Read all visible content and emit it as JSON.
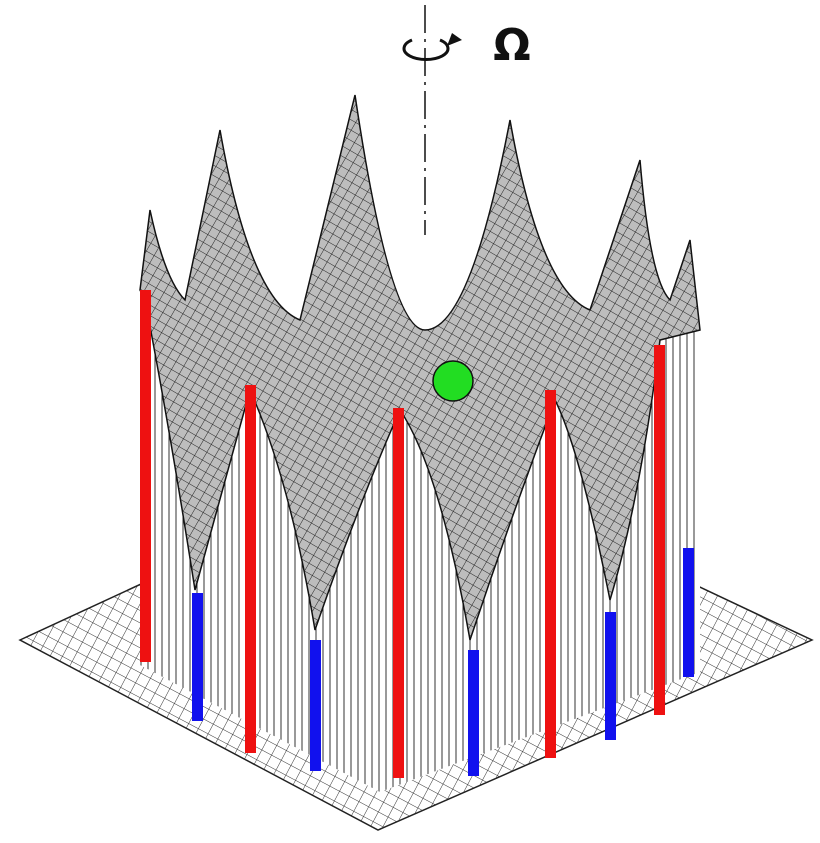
{
  "label": "Ω"
}
